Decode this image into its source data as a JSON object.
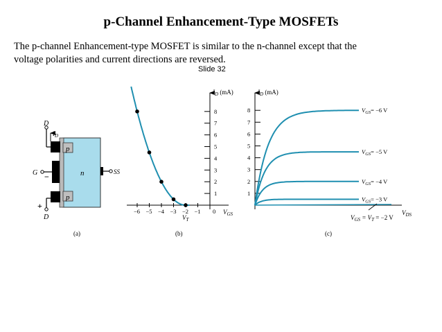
{
  "title": "p-Channel Enhancement-Type MOSFETs",
  "description": {
    "line1": "The p-channel Enhancement-type MOSFET is similar to the  n-channel except that the",
    "line2": "voltage polarities and current directions are reversed."
  },
  "slide_label": "Slide 32",
  "figure_a": {
    "caption": "(a)",
    "terminals": {
      "drain_top": "D",
      "drain_bottom": "D",
      "gate": "G",
      "substrate": "SS",
      "current": "I",
      "current_sub": "D"
    },
    "regions": {
      "p_top": "p",
      "n_body": "n",
      "p_bottom": "p"
    },
    "signs": {
      "minus": "−",
      "plus": "+"
    },
    "colors": {
      "body": "#a9dcec",
      "contact": "#000000"
    }
  },
  "figure_b": {
    "caption": "(b)",
    "y_axis_label": "I",
    "y_axis_sub": "D",
    "y_axis_unit": " (mA)",
    "x_axis_label": "V",
    "x_axis_sub": "GS",
    "vt_label": "V",
    "vt_sub": "T",
    "y_ticks": [
      "8",
      "7",
      "6",
      "5",
      "4",
      "3",
      "2",
      "1"
    ],
    "x_ticks": [
      "−6",
      "−5",
      "−4",
      "−3",
      "−2",
      "−1",
      "0"
    ],
    "curve_color": "#1f8fb0",
    "points": [
      {
        "vgs": -6,
        "id": 8
      },
      {
        "vgs": -5,
        "id": 4.5
      },
      {
        "vgs": -4,
        "id": 2
      },
      {
        "vgs": -3,
        "id": 0.5
      },
      {
        "vgs": -2,
        "id": 0
      }
    ]
  },
  "figure_c": {
    "caption": "(c)",
    "y_axis_label": "I",
    "y_axis_sub": "D",
    "y_axis_unit": " (mA)",
    "x_axis_label": "V",
    "x_axis_sub": "DS",
    "y_ticks": [
      "8",
      "7",
      "6",
      "5",
      "4",
      "3",
      "2",
      "1"
    ],
    "curve_color": "#1f8fb0",
    "curves": [
      {
        "vgs_label": "= −6 V",
        "id": 8
      },
      {
        "vgs_label": "= −5 V",
        "id": 4.5
      },
      {
        "vgs_label": "= −4 V",
        "id": 2
      },
      {
        "vgs_label": "= −3 V",
        "id": 0.5
      }
    ],
    "vt_curve_label_a": "V",
    "vt_curve_label_a_sub": "GS",
    "vt_curve_label_mid": " = V",
    "vt_curve_label_b_sub": "T",
    "vt_curve_label_end": " = −2 V",
    "curve_vgs_label": "V",
    "curve_vgs_sub": "GS"
  }
}
